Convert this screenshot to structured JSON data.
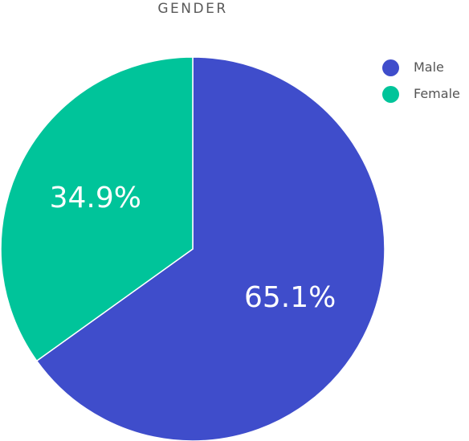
{
  "chart_data": {
    "type": "pie",
    "title": "GENDER",
    "slices": [
      {
        "name": "Male",
        "value": 65.1,
        "label": "65.1%",
        "color": "#3f4dcb"
      },
      {
        "name": "Female",
        "value": 34.9,
        "label": "34.9%",
        "color": "#00c49a"
      }
    ],
    "legend_position": "top-right"
  }
}
